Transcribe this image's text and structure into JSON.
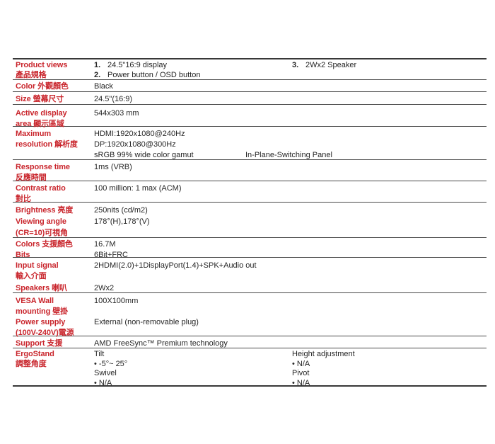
{
  "accent_red": "#c9252c",
  "line_color": "#4a4a4a",
  "rows": [
    {
      "name": "product-views",
      "label": [
        "Product views",
        "產品規格"
      ],
      "items": [
        {
          "num": "1.",
          "text": "24.5\"16:9 display"
        },
        {
          "num": "2.",
          "text": "Power button / OSD button"
        }
      ],
      "items_right": [
        {
          "num": "3.",
          "text": "2Wx2 Speaker"
        }
      ]
    },
    {
      "name": "color",
      "label": [
        "Color 外觀顏色"
      ],
      "values": [
        "Black"
      ]
    },
    {
      "name": "size",
      "label": [
        "Size 螢幕尺寸"
      ],
      "values": [
        "24.5\"(16:9)"
      ]
    },
    {
      "name": "active-display-area",
      "label": [
        "Active display",
        "area 顯示區域"
      ],
      "values": [
        "544x303 mm"
      ]
    },
    {
      "name": "maximum-resolution",
      "label": [
        "Maximum",
        "resolution 解析度"
      ],
      "values": [
        "HDMI:1920x1080@240Hz",
        "DP:1920x1080@300Hz",
        "sRGB 99% wide color gamut"
      ],
      "value_right": "In-Plane-Switching Panel"
    },
    {
      "name": "response-time",
      "label": [
        "Response time",
        "反應時間"
      ],
      "values": [
        "1ms (VRB)"
      ]
    },
    {
      "name": "contrast-ratio",
      "label": [
        "Contrast ratio",
        "對比"
      ],
      "values": [
        "100 million: 1 max (ACM)"
      ]
    },
    {
      "name": "brightness-viewing-angle",
      "label": [
        "Brightness 亮度",
        "Viewing angle",
        "(CR=10)可視角"
      ],
      "values": [
        "250nits (cd/m2)",
        "178°(H),178°(V)"
      ]
    },
    {
      "name": "colors-bits",
      "label": [
        "Colors 支援顏色",
        "Bits"
      ],
      "values": [
        "16.7M",
        "6Bit+FRC"
      ]
    },
    {
      "name": "input-signal-speakers",
      "label": [
        "Input signal",
        "輸入介面",
        "Speakers 喇叭"
      ],
      "values": [
        "2HDMI(2.0)+1DisplayPort(1.4)+SPK+Audio out",
        "2Wx2"
      ]
    },
    {
      "name": "vesa-power",
      "label": [
        "VESA Wall",
        "mounting 壁掛",
        "Power supply",
        "(100V-240V)電源"
      ],
      "values": [
        "100X100mm",
        "External (non-removable plug)"
      ]
    },
    {
      "name": "support",
      "label": [
        "Support 支援"
      ],
      "values": [
        "AMD FreeSync™ Premium technology"
      ]
    },
    {
      "name": "ergostand",
      "label": [
        "ErgoStand",
        "調整角度"
      ],
      "values": [
        "Tilt",
        "• -5°~ 25°",
        "Swivel",
        "• N/A"
      ],
      "values_right": [
        "Height adjustment",
        "• N/A",
        "Pivot",
        "• N/A"
      ]
    }
  ]
}
